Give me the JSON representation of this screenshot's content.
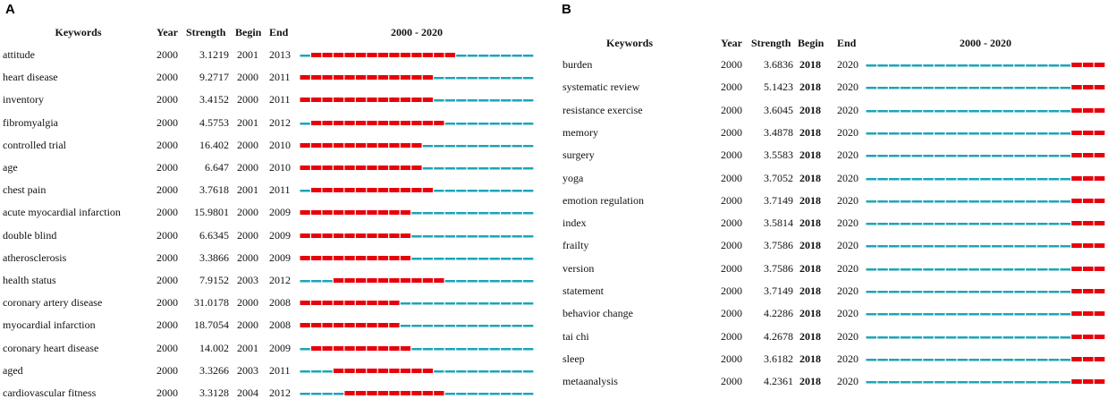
{
  "chart_data": [
    {
      "type": "table",
      "panel_label": "A",
      "title": "2000 - 2020",
      "columns": [
        "Keywords",
        "Year",
        "Strength",
        "Begin",
        "End",
        "2000 - 2020"
      ],
      "year_range": [
        2000,
        2020
      ],
      "colors": {
        "burst": "#e8000b",
        "baseline": "#1ba5b8"
      },
      "rows": [
        {
          "keyword": "attitude",
          "year": "2000",
          "strength": "3.1219",
          "begin": "2001",
          "end": "2013"
        },
        {
          "keyword": "heart disease",
          "year": "2000",
          "strength": "9.2717",
          "begin": "2000",
          "end": "2011"
        },
        {
          "keyword": "inventory",
          "year": "2000",
          "strength": "3.4152",
          "begin": "2000",
          "end": "2011"
        },
        {
          "keyword": "fibromyalgia",
          "year": "2000",
          "strength": "4.5753",
          "begin": "2001",
          "end": "2012"
        },
        {
          "keyword": "controlled trial",
          "year": "2000",
          "strength": "16.402",
          "begin": "2000",
          "end": "2010"
        },
        {
          "keyword": "age",
          "year": "2000",
          "strength": "6.647",
          "begin": "2000",
          "end": "2010"
        },
        {
          "keyword": "chest pain",
          "year": "2000",
          "strength": "3.7618",
          "begin": "2001",
          "end": "2011"
        },
        {
          "keyword": "acute myocardial infarction",
          "year": "2000",
          "strength": "15.9801",
          "begin": "2000",
          "end": "2009"
        },
        {
          "keyword": "double blind",
          "year": "2000",
          "strength": "6.6345",
          "begin": "2000",
          "end": "2009"
        },
        {
          "keyword": "atherosclerosis",
          "year": "2000",
          "strength": "3.3866",
          "begin": "2000",
          "end": "2009"
        },
        {
          "keyword": "health status",
          "year": "2000",
          "strength": "7.9152",
          "begin": "2003",
          "end": "2012"
        },
        {
          "keyword": "coronary artery disease",
          "year": "2000",
          "strength": "31.0178",
          "begin": "2000",
          "end": "2008"
        },
        {
          "keyword": "myocardial infarction",
          "year": "2000",
          "strength": "18.7054",
          "begin": "2000",
          "end": "2008"
        },
        {
          "keyword": "coronary heart disease",
          "year": "2000",
          "strength": "14.002",
          "begin": "2001",
          "end": "2009"
        },
        {
          "keyword": "aged",
          "year": "2000",
          "strength": "3.3266",
          "begin": "2003",
          "end": "2011"
        },
        {
          "keyword": "cardiovascular fitness",
          "year": "2000",
          "strength": "3.3128",
          "begin": "2004",
          "end": "2012"
        }
      ]
    },
    {
      "type": "table",
      "panel_label": "B",
      "title": "2000 - 2020",
      "columns": [
        "Keywords",
        "Year",
        "Strength",
        "Begin",
        "End",
        "2000 - 2020"
      ],
      "year_range": [
        2000,
        2020
      ],
      "colors": {
        "burst": "#e8000b",
        "baseline": "#1ba5b8"
      },
      "rows": [
        {
          "keyword": "burden",
          "year": "2000",
          "strength": "3.6836",
          "begin": "2018",
          "end": "2020"
        },
        {
          "keyword": "systematic review",
          "year": "2000",
          "strength": "5.1423",
          "begin": "2018",
          "end": "2020"
        },
        {
          "keyword": "resistance exercise",
          "year": "2000",
          "strength": "3.6045",
          "begin": "2018",
          "end": "2020"
        },
        {
          "keyword": "memory",
          "year": "2000",
          "strength": "3.4878",
          "begin": "2018",
          "end": "2020"
        },
        {
          "keyword": "surgery",
          "year": "2000",
          "strength": "3.5583",
          "begin": "2018",
          "end": "2020"
        },
        {
          "keyword": "yoga",
          "year": "2000",
          "strength": "3.7052",
          "begin": "2018",
          "end": "2020"
        },
        {
          "keyword": "emotion regulation",
          "year": "2000",
          "strength": "3.7149",
          "begin": "2018",
          "end": "2020"
        },
        {
          "keyword": "index",
          "year": "2000",
          "strength": "3.5814",
          "begin": "2018",
          "end": "2020"
        },
        {
          "keyword": "frailty",
          "year": "2000",
          "strength": "3.7586",
          "begin": "2018",
          "end": "2020"
        },
        {
          "keyword": "version",
          "year": "2000",
          "strength": "3.7586",
          "begin": "2018",
          "end": "2020"
        },
        {
          "keyword": "statement",
          "year": "2000",
          "strength": "3.7149",
          "begin": "2018",
          "end": "2020"
        },
        {
          "keyword": "behavior change",
          "year": "2000",
          "strength": "4.2286",
          "begin": "2018",
          "end": "2020"
        },
        {
          "keyword": "tai chi",
          "year": "2000",
          "strength": "4.2678",
          "begin": "2018",
          "end": "2020"
        },
        {
          "keyword": "sleep",
          "year": "2000",
          "strength": "3.6182",
          "begin": "2018",
          "end": "2020"
        },
        {
          "keyword": "metaanalysis",
          "year": "2000",
          "strength": "4.2361",
          "begin": "2018",
          "end": "2020"
        }
      ]
    }
  ]
}
